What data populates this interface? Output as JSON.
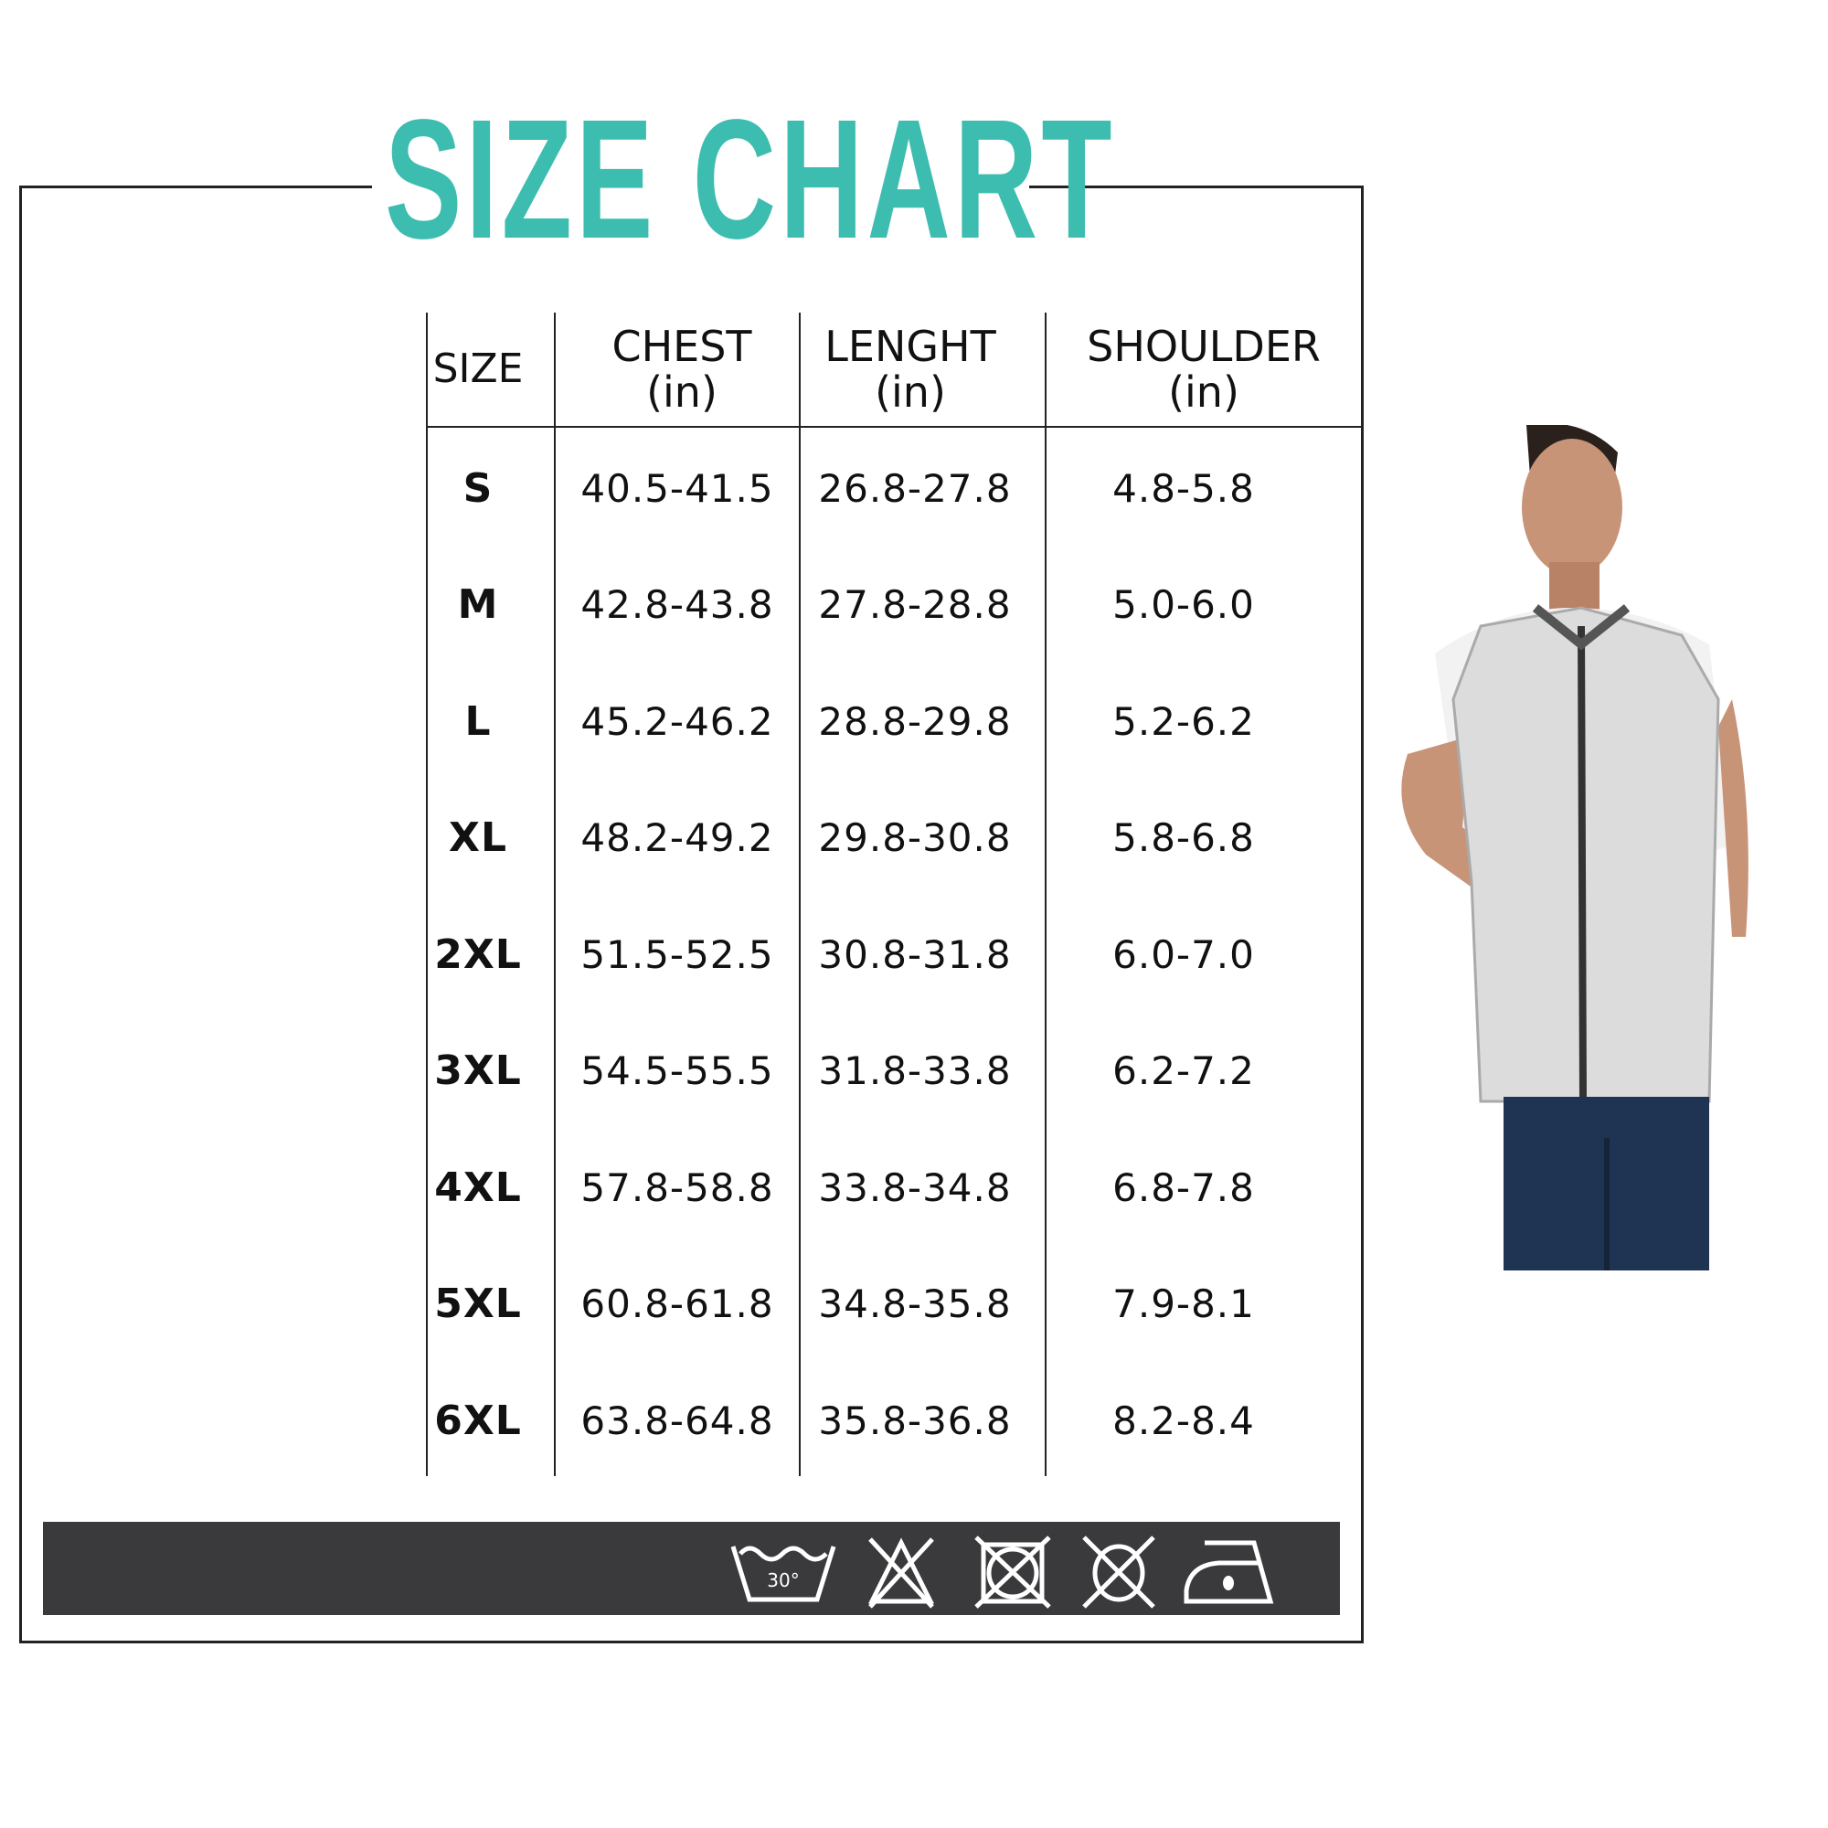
{
  "title": "SIZE CHART",
  "colors": {
    "title": "#3dbdb0",
    "care_band": "#3a393b"
  },
  "table": {
    "headers": [
      {
        "label": "SIZE",
        "unit": ""
      },
      {
        "label": "CHEST",
        "unit": "(in)"
      },
      {
        "label": "LENGHT",
        "unit": "(in)"
      },
      {
        "label": "SHOULDER",
        "unit": "(in)"
      }
    ],
    "rows": [
      [
        "S",
        "40.5-41.5",
        "26.8-27.8",
        "4.8-5.8"
      ],
      [
        "M",
        "42.8-43.8",
        "27.8-28.8",
        "5.0-6.0"
      ],
      [
        "L",
        "45.2-46.2",
        "28.8-29.8",
        "5.2-6.2"
      ],
      [
        "XL",
        "48.2-49.2",
        "29.8-30.8",
        "5.8-6.8"
      ],
      [
        "2XL",
        "51.5-52.5",
        "30.8-31.8",
        "6.0-7.0"
      ],
      [
        "3XL",
        "54.5-55.5",
        "31.8-33.8",
        "6.2-7.2"
      ],
      [
        "4XL",
        "57.8-58.8",
        "33.8-34.8",
        "6.8-7.8"
      ],
      [
        "5XL",
        "60.8-61.8",
        "34.8-35.8",
        "7.9-8.1"
      ],
      [
        "6XL",
        "63.8-64.8",
        "35.8-36.8",
        "8.2-8.4"
      ]
    ]
  },
  "care_icons": [
    {
      "icon": "wash-30-icon",
      "text": "30°"
    },
    {
      "icon": "do-not-bleach-icon"
    },
    {
      "icon": "do-not-tumble-dry-icon"
    },
    {
      "icon": "do-not-dry-clean-icon"
    },
    {
      "icon": "iron-low-heat-icon"
    }
  ]
}
